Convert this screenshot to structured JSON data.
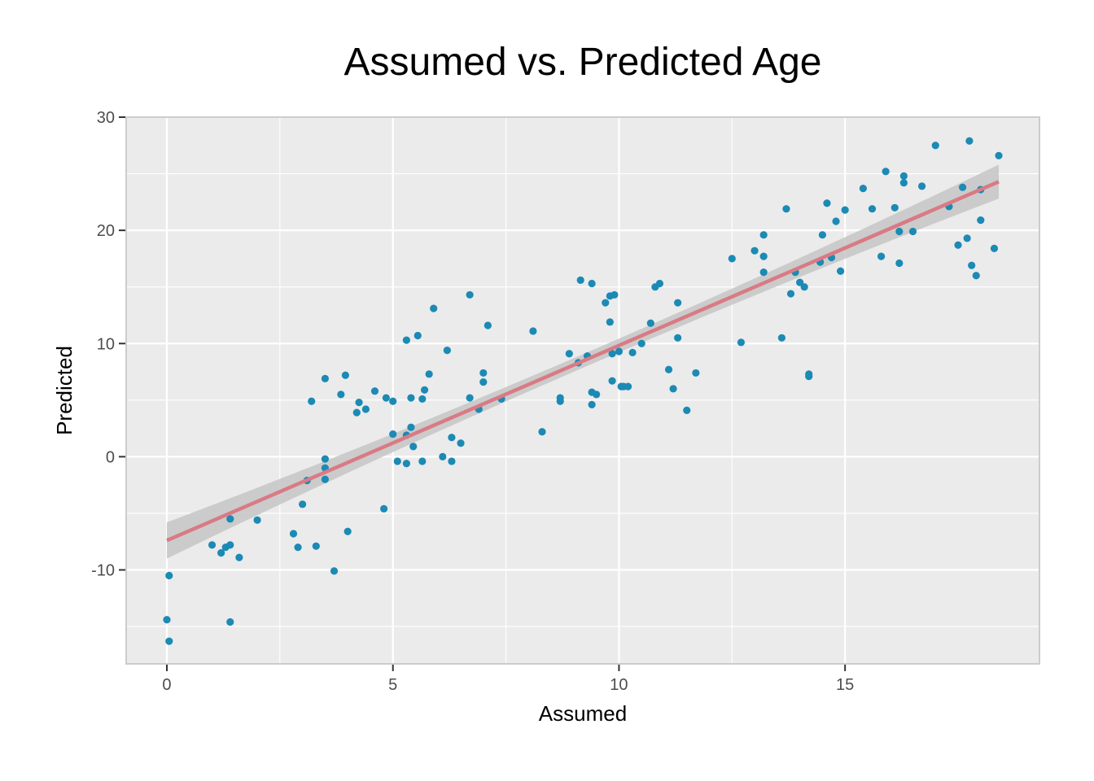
{
  "chart_data": {
    "type": "scatter",
    "title": "Assumed vs. Predicted Age",
    "xlabel": "Assumed",
    "ylabel": "Predicted",
    "xlim": [
      -0.9,
      19.3
    ],
    "ylim": [
      -18.3,
      30
    ],
    "x_ticks": [
      0,
      5,
      10,
      15
    ],
    "x_tick_labels": [
      "0",
      "5",
      "10",
      "15"
    ],
    "y_ticks": [
      -10,
      0,
      10,
      20,
      30
    ],
    "y_tick_labels": [
      "-10",
      "0",
      "10",
      "20",
      "30"
    ],
    "grid": true,
    "legend": "none",
    "colors": {
      "points": "#1b8ab4",
      "fit_line": "#d97a84",
      "confidence_band": "#c5c5c5",
      "panel_background": "#ebebeb",
      "grid": "#ffffff"
    },
    "series": [
      {
        "points": [
          [
            0.0,
            -14.4
          ],
          [
            0.05,
            -16.3
          ],
          [
            0.05,
            -10.5
          ],
          [
            1.0,
            -7.8
          ],
          [
            1.2,
            -8.5
          ],
          [
            1.3,
            -8.0
          ],
          [
            1.4,
            -7.8
          ],
          [
            1.4,
            -5.5
          ],
          [
            1.4,
            -14.6
          ],
          [
            1.6,
            -8.9
          ],
          [
            2.0,
            -5.6
          ],
          [
            2.8,
            -6.8
          ],
          [
            2.9,
            -8.0
          ],
          [
            3.0,
            -4.2
          ],
          [
            3.1,
            -2.1
          ],
          [
            3.2,
            4.9
          ],
          [
            3.3,
            -7.9
          ],
          [
            3.5,
            6.9
          ],
          [
            3.5,
            -0.2
          ],
          [
            3.5,
            -1.0
          ],
          [
            3.5,
            -2.0
          ],
          [
            3.7,
            -10.1
          ],
          [
            3.85,
            5.5
          ],
          [
            3.95,
            7.2
          ],
          [
            4.0,
            -6.6
          ],
          [
            4.2,
            3.9
          ],
          [
            4.25,
            4.8
          ],
          [
            4.4,
            4.2
          ],
          [
            4.6,
            5.8
          ],
          [
            4.8,
            -4.6
          ],
          [
            4.85,
            5.2
          ],
          [
            5.0,
            4.9
          ],
          [
            5.0,
            2.0
          ],
          [
            5.1,
            -0.4
          ],
          [
            5.3,
            1.9
          ],
          [
            5.3,
            10.3
          ],
          [
            5.3,
            -0.6
          ],
          [
            5.4,
            2.6
          ],
          [
            5.4,
            5.2
          ],
          [
            5.45,
            0.9
          ],
          [
            5.55,
            10.7
          ],
          [
            5.65,
            5.1
          ],
          [
            5.65,
            -0.4
          ],
          [
            5.7,
            5.9
          ],
          [
            5.8,
            7.3
          ],
          [
            5.9,
            13.1
          ],
          [
            6.1,
            0.0
          ],
          [
            6.2,
            9.4
          ],
          [
            6.3,
            1.7
          ],
          [
            6.3,
            -0.4
          ],
          [
            6.5,
            1.2
          ],
          [
            6.7,
            14.3
          ],
          [
            6.7,
            5.2
          ],
          [
            6.9,
            4.2
          ],
          [
            7.0,
            7.4
          ],
          [
            7.0,
            6.6
          ],
          [
            7.1,
            11.6
          ],
          [
            7.4,
            5.1
          ],
          [
            8.1,
            11.1
          ],
          [
            8.3,
            2.2
          ],
          [
            8.7,
            4.9
          ],
          [
            8.7,
            5.2
          ],
          [
            8.9,
            9.1
          ],
          [
            9.1,
            8.3
          ],
          [
            9.15,
            15.6
          ],
          [
            9.3,
            8.9
          ],
          [
            9.4,
            15.3
          ],
          [
            9.4,
            5.7
          ],
          [
            9.4,
            4.6
          ],
          [
            9.5,
            5.5
          ],
          [
            9.7,
            13.6
          ],
          [
            9.8,
            14.2
          ],
          [
            9.8,
            11.9
          ],
          [
            9.85,
            9.1
          ],
          [
            9.85,
            6.7
          ],
          [
            9.9,
            14.3
          ],
          [
            10.0,
            9.3
          ],
          [
            10.05,
            6.2
          ],
          [
            10.1,
            6.2
          ],
          [
            10.2,
            6.2
          ],
          [
            10.3,
            9.2
          ],
          [
            10.5,
            10.0
          ],
          [
            10.7,
            11.8
          ],
          [
            10.8,
            15.0
          ],
          [
            10.9,
            15.3
          ],
          [
            11.1,
            7.7
          ],
          [
            11.2,
            6.0
          ],
          [
            11.3,
            10.5
          ],
          [
            11.3,
            13.6
          ],
          [
            11.5,
            4.1
          ],
          [
            11.7,
            7.4
          ],
          [
            12.5,
            17.5
          ],
          [
            12.7,
            10.1
          ],
          [
            13.0,
            18.2
          ],
          [
            13.2,
            19.6
          ],
          [
            13.2,
            17.7
          ],
          [
            13.2,
            16.3
          ],
          [
            13.6,
            10.5
          ],
          [
            13.7,
            21.9
          ],
          [
            13.8,
            14.4
          ],
          [
            13.9,
            16.3
          ],
          [
            14.0,
            15.4
          ],
          [
            14.1,
            15.0
          ],
          [
            14.2,
            7.3
          ],
          [
            14.2,
            7.1
          ],
          [
            14.45,
            17.2
          ],
          [
            14.5,
            19.6
          ],
          [
            14.6,
            22.4
          ],
          [
            14.7,
            17.6
          ],
          [
            14.8,
            20.8
          ],
          [
            14.9,
            16.4
          ],
          [
            15.0,
            21.8
          ],
          [
            15.4,
            23.7
          ],
          [
            15.6,
            21.9
          ],
          [
            15.8,
            17.7
          ],
          [
            15.9,
            25.2
          ],
          [
            16.1,
            22.0
          ],
          [
            16.2,
            19.9
          ],
          [
            16.2,
            17.1
          ],
          [
            16.3,
            24.8
          ],
          [
            16.3,
            24.2
          ],
          [
            16.5,
            19.9
          ],
          [
            16.7,
            23.9
          ],
          [
            17.0,
            27.5
          ],
          [
            17.3,
            22.1
          ],
          [
            17.5,
            18.7
          ],
          [
            17.6,
            23.8
          ],
          [
            17.7,
            19.3
          ],
          [
            17.75,
            27.9
          ],
          [
            17.8,
            16.9
          ],
          [
            17.9,
            16.0
          ],
          [
            18.0,
            20.9
          ],
          [
            18.0,
            23.6
          ],
          [
            18.3,
            18.4
          ],
          [
            18.4,
            26.6
          ]
        ]
      }
    ],
    "fit": {
      "type": "linear",
      "x_range": [
        0,
        18.4
      ],
      "y_start": -7.4,
      "y_end": 24.3,
      "band_halfwidth_start": 1.6,
      "band_halfwidth_mid": 0.6,
      "band_halfwidth_end": 1.5
    }
  }
}
